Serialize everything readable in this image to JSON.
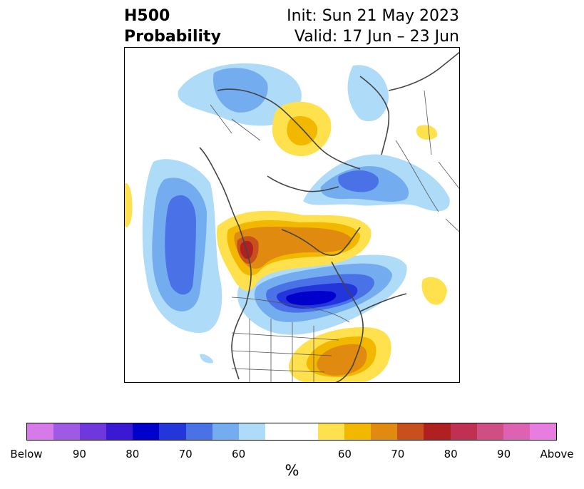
{
  "title": {
    "left_line1": "H500",
    "left_line2": "Probability",
    "right_line1": "Init: Sun 21 May 2023",
    "right_line2": "Valid: 17 Jun – 23 Jun"
  },
  "colorbar": {
    "colors": [
      "#d57ae8",
      "#9f59e4",
      "#6e38dc",
      "#3b19d4",
      "#0000cc",
      "#2236dc",
      "#4a71e6",
      "#73adf0",
      "#aedbf8",
      "#ffffff",
      "#ffffff",
      "#ffe14d",
      "#f2b800",
      "#e08a10",
      "#c8501c",
      "#b02020",
      "#c03050",
      "#cf4e84",
      "#de62b2",
      "#e87de0"
    ],
    "tick_labels": [
      "Below",
      "90",
      "80",
      "70",
      "60",
      "60",
      "70",
      "80",
      "90",
      "Above"
    ],
    "unit": "%"
  }
}
